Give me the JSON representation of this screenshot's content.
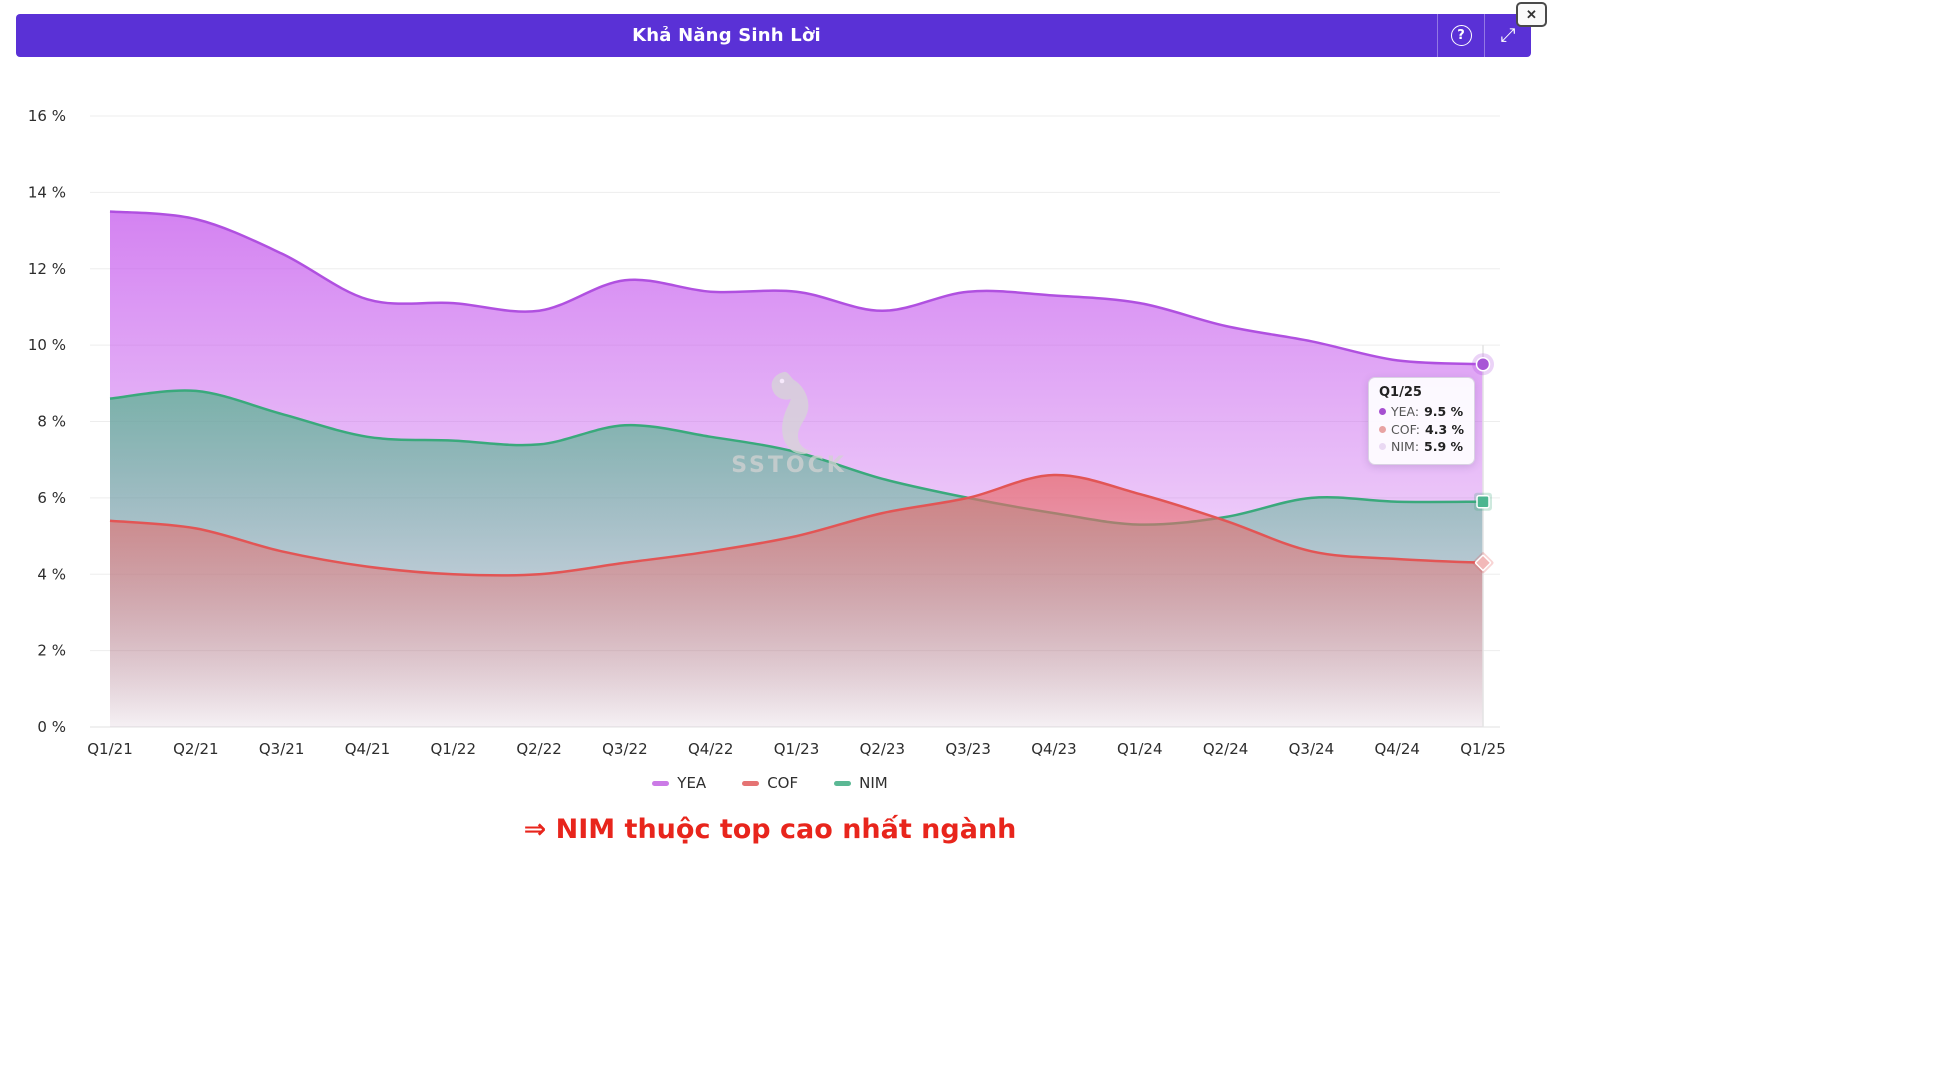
{
  "window": {
    "close_icon": "✕"
  },
  "header": {
    "title": "Khả Năng Sinh Lời",
    "help_icon": "?",
    "expand_icon": "⤢",
    "background": "#5a31d6"
  },
  "chart_data": {
    "type": "area",
    "title": "Khả Năng Sinh Lời",
    "categories": [
      "Q1/21",
      "Q2/21",
      "Q3/21",
      "Q4/21",
      "Q1/22",
      "Q2/22",
      "Q3/22",
      "Q4/22",
      "Q1/23",
      "Q2/23",
      "Q3/23",
      "Q4/23",
      "Q1/24",
      "Q2/24",
      "Q3/24",
      "Q4/24",
      "Q1/25"
    ],
    "series": [
      {
        "name": "YEA",
        "line": "#b050e0",
        "fill": "#c963ee",
        "top_opacity": 0.8,
        "marker": "circle",
        "marker_color": "#a855d6",
        "values": [
          13.5,
          13.3,
          12.4,
          11.2,
          11.1,
          10.9,
          11.7,
          11.4,
          11.4,
          10.9,
          11.4,
          11.3,
          11.1,
          10.5,
          10.1,
          9.6,
          9.5
        ]
      },
      {
        "name": "NIM",
        "line": "#3aa97c",
        "fill": "#52b48c",
        "top_opacity": 0.72,
        "marker": "square",
        "marker_color": "#4db690",
        "values": [
          8.6,
          8.8,
          8.2,
          7.6,
          7.5,
          7.4,
          7.9,
          7.6,
          7.2,
          6.5,
          6.0,
          5.6,
          5.3,
          5.5,
          6.0,
          5.9,
          5.9
        ]
      },
      {
        "name": "COF",
        "line": "#e25555",
        "fill": "#e76969",
        "top_opacity": 0.72,
        "marker": "diamond",
        "marker_color": "#f2b8b8",
        "values": [
          5.4,
          5.2,
          4.6,
          4.2,
          4.0,
          4.0,
          4.3,
          4.6,
          5.0,
          5.6,
          6.0,
          6.6,
          6.1,
          5.4,
          4.6,
          4.4,
          4.3
        ]
      }
    ],
    "y_ticks": [
      0,
      2,
      4,
      6,
      8,
      10,
      12,
      14,
      16
    ],
    "y_tick_suffix": " %",
    "ylim": [
      0,
      16
    ],
    "grid": true,
    "legend_position": "bottom"
  },
  "legend": [
    {
      "label": "YEA",
      "color": "#cb7ae6"
    },
    {
      "label": "COF",
      "color": "#e57373"
    },
    {
      "label": "NIM",
      "color": "#5bb894"
    }
  ],
  "tooltip": {
    "title": "Q1/25",
    "rows": [
      {
        "series": "YEA",
        "value": "9.5 %",
        "dot": "#a64fd0"
      },
      {
        "series": "COF",
        "value": "4.3 %",
        "dot": "#e8a3a3"
      },
      {
        "series": "NIM",
        "value": "5.9 %",
        "dot": "#ead9f3"
      }
    ]
  },
  "watermark": {
    "text": "SSTOCK"
  },
  "footnote": {
    "text": "⇒ NIM thuộc top cao nhất ngành",
    "color": "#e8251c"
  }
}
